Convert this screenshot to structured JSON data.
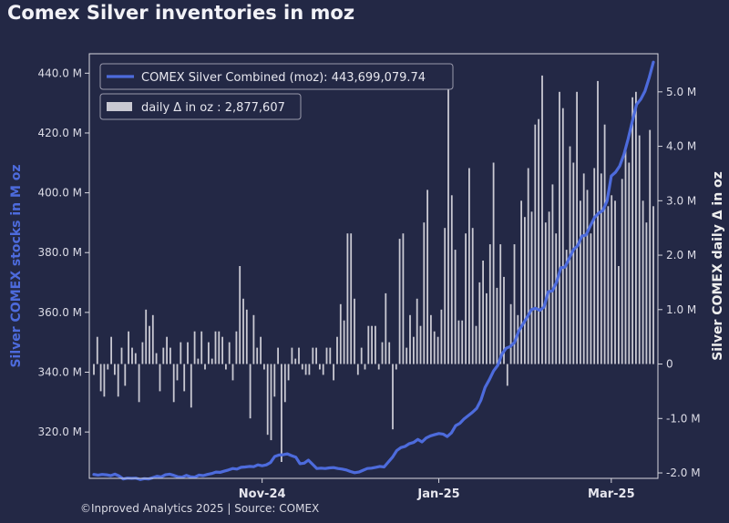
{
  "title": "Comex Silver inventories in moz",
  "footer": "©Inproved Analytics 2025 | Source: COMEX",
  "colors": {
    "background": "#232845",
    "line": "#4d6bdc",
    "bars": "#c9c9d2",
    "axis": "#d8d8e0"
  },
  "chart_data": {
    "type": "line",
    "title": "Comex Silver inventories in moz",
    "ylabel": "Silver COMEX stocks in M oz",
    "y2label": "Silver COMEX daily Δ in oz",
    "x_tick_labels": [
      {
        "label": "Nov-24",
        "index": 40
      },
      {
        "label": "Jan-25",
        "index": 82
      },
      {
        "label": "Mar-25",
        "index": 123
      }
    ],
    "y_ticks": [
      "320.0 M",
      "340.0 M",
      "360.0 M",
      "380.0 M",
      "400.0 M",
      "420.0 M",
      "440.0 M"
    ],
    "y_tick_values": [
      320,
      340,
      360,
      380,
      400,
      420,
      440
    ],
    "ylim": [
      304.5,
      446.5
    ],
    "y2_ticks": [
      "-2.0 M",
      "-1.0 M",
      "0",
      "1.0 M",
      "2.0 M",
      "3.0 M",
      "4.0 M",
      "5.0 M"
    ],
    "y2_tick_values": [
      -2,
      -1,
      0,
      1,
      2,
      3,
      4,
      5
    ],
    "y2lim": [
      -2.1,
      5.7
    ],
    "legend_position": "top-left",
    "series": [
      {
        "name": "COMEX Silver Combined (moz): 443,699,079.74",
        "axis": "left",
        "values": [
          305.8,
          305.6,
          305.8,
          305.7,
          305.4,
          305.9,
          305.3,
          304.3,
          304.6,
          304.5,
          304.6,
          304.1,
          304.4,
          304.3,
          304.7,
          305.2,
          305.0,
          305.7,
          305.9,
          305.5,
          305.0,
          304.9,
          305.5,
          305.0,
          304.9,
          305.6,
          305.4,
          305.8,
          306.1,
          306.6,
          306.5,
          306.9,
          307.3,
          307.8,
          307.6,
          308.2,
          308.3,
          308.5,
          308.4,
          309.0,
          308.7,
          309.0,
          309.8,
          311.8,
          312.3,
          312.4,
          312.7,
          312.1,
          311.6,
          309.4,
          309.6,
          310.6,
          309.2,
          307.8,
          307.9,
          307.8,
          308.0,
          308.1,
          307.8,
          307.6,
          307.3,
          306.8,
          306.4,
          306.6,
          307.2,
          307.8,
          307.9,
          308.2,
          308.5,
          308.3,
          310.0,
          311.6,
          313.8,
          314.8,
          315.2,
          316.1,
          316.5,
          317.5,
          316.7,
          318.0,
          318.7,
          319.1,
          319.5,
          319.3,
          318.5,
          319.7,
          322.1,
          322.9,
          324.4,
          325.5,
          326.6,
          327.9,
          330.6,
          334.9,
          337.5,
          340.4,
          342.3,
          346.0,
          348.0,
          348.6,
          350.0,
          353.8,
          356.1,
          358.4,
          360.9,
          361.4,
          360.7,
          361.8,
          366.9,
          367.2,
          370.1,
          374.9,
          375.2,
          378.1,
          381.0,
          382.3,
          385.5,
          385.9,
          388.9,
          391.7,
          393.2,
          394.1,
          397.3,
          405.6,
          406.9,
          409.0,
          412.8,
          418.0,
          423.9,
          429.5,
          431.3,
          434.0,
          438.5,
          443.7
        ]
      },
      {
        "name": "daily Δ in oz : 2,877,607",
        "axis": "right",
        "type": "bar",
        "values": [
          -0.2,
          0.5,
          -0.5,
          -0.6,
          -0.1,
          0.5,
          -0.2,
          -0.6,
          0.3,
          -0.4,
          0.6,
          0.3,
          0.2,
          -0.7,
          0.4,
          1.0,
          0.7,
          0.9,
          0.2,
          -0.5,
          0.3,
          0.5,
          0.3,
          -0.7,
          -0.3,
          0.4,
          -0.5,
          0.4,
          -0.8,
          0.6,
          0.1,
          0.6,
          -0.1,
          0.4,
          0.1,
          0.6,
          0.6,
          0.5,
          -0.1,
          0.4,
          -0.3,
          0.6,
          1.8,
          1.2,
          1.0,
          -1.0,
          0.9,
          0.3,
          0.5,
          -0.1,
          -1.3,
          -1.4,
          -0.6,
          0.3,
          -1.8,
          -0.7,
          -0.3,
          0.3,
          0.1,
          0.3,
          -0.1,
          -0.2,
          -0.2,
          0.3,
          0.3,
          -0.1,
          -0.2,
          0.3,
          0.3,
          -0.3,
          0.5,
          1.1,
          0.8,
          2.4,
          2.4,
          1.2,
          -0.2,
          0.3,
          -0.1,
          0.7,
          0.7,
          0.7,
          -0.1,
          0.4,
          1.3,
          0.4,
          -1.2,
          -0.1,
          2.3,
          2.4,
          0.3,
          0.9,
          0.5,
          1.2,
          0.7,
          2.6,
          3.2,
          0.9,
          0.6,
          0.5,
          1.0,
          2.5,
          5.3,
          3.1,
          2.1,
          0.8,
          0.8,
          2.4,
          3.6,
          2.5,
          0.7,
          1.5,
          1.9,
          1.3,
          2.2,
          3.7,
          1.4,
          2.2,
          1.6,
          -0.4,
          1.1,
          2.2,
          0.9,
          3.0,
          2.7,
          3.6,
          2.8,
          4.4,
          4.5,
          5.3,
          2.6,
          2.8,
          3.3,
          2.4,
          5.0,
          4.7,
          2.1,
          4.0,
          3.7,
          5.0,
          3.0,
          3.5,
          3.2,
          2.4,
          3.6,
          5.2,
          3.5,
          4.4,
          2.9,
          3.1,
          3.0,
          1.8,
          3.4,
          4.0,
          3.7,
          4.9,
          5.0,
          4.2,
          3.0,
          2.6,
          4.3,
          2.9
        ]
      }
    ]
  }
}
